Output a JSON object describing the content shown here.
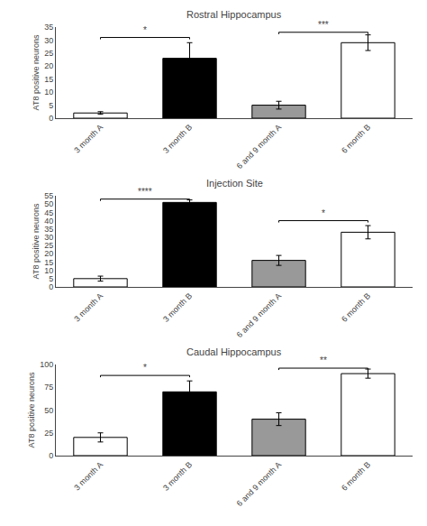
{
  "chart_data": [
    {
      "type": "bar",
      "title": "Rostral Hippocampus",
      "ylabel": "AT8 positive neurons",
      "categories": [
        "3 month A",
        "3 month B",
        "6 and 9 month A",
        "6 month B"
      ],
      "values": [
        2,
        23,
        5,
        29
      ],
      "errors": [
        0.5,
        6,
        1.5,
        3
      ],
      "colors": [
        "white",
        "black",
        "#999999",
        "white"
      ],
      "ylim": [
        0,
        35
      ],
      "yticks": [
        0,
        5,
        10,
        15,
        20,
        25,
        30,
        35
      ],
      "grid": false,
      "annotations": [
        {
          "from": "3 month A",
          "to": "3 month B",
          "y": 31,
          "label": "*"
        },
        {
          "from": "6 and 9 month A",
          "to": "6 month B",
          "y": 33,
          "label": "***"
        }
      ]
    },
    {
      "type": "bar",
      "title": "Injection Site",
      "ylabel": "AT8 positive neurons",
      "categories": [
        "3 month A",
        "3 month B",
        "6 and 9 month A",
        "6 month B"
      ],
      "values": [
        5,
        51,
        16,
        33
      ],
      "errors": [
        1.5,
        1.5,
        3,
        4
      ],
      "colors": [
        "white",
        "black",
        "#999999",
        "white"
      ],
      "ylim": [
        0,
        55
      ],
      "yticks": [
        0,
        5,
        10,
        15,
        20,
        25,
        30,
        35,
        40,
        45,
        50,
        55
      ],
      "grid": false,
      "annotations": [
        {
          "from": "3 month A",
          "to": "3 month B",
          "y": 53,
          "label": "****"
        },
        {
          "from": "6 and 9 month A",
          "to": "6 month B",
          "y": 40,
          "label": "*"
        }
      ]
    },
    {
      "type": "bar",
      "title": "Caudal Hippocampus",
      "ylabel": "AT8 positive neurons",
      "categories": [
        "3 month A",
        "3 month B",
        "6 and 9 month A",
        "6 month B"
      ],
      "values": [
        20,
        70,
        40,
        90
      ],
      "errors": [
        5,
        12,
        7,
        5
      ],
      "colors": [
        "white",
        "black",
        "#999999",
        "white"
      ],
      "ylim": [
        0,
        100
      ],
      "yticks": [
        0,
        25,
        50,
        75,
        100
      ],
      "grid": false,
      "annotations": [
        {
          "from": "3 month A",
          "to": "3 month B",
          "y": 88,
          "label": "*"
        },
        {
          "from": "6 and 9 month A",
          "to": "6 month B",
          "y": 96,
          "label": "**"
        }
      ]
    }
  ]
}
